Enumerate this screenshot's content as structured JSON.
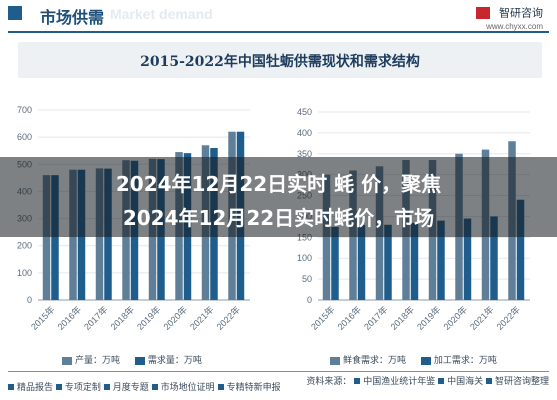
{
  "header": {
    "section_title": "市场供需",
    "watermark_text": "Market demand",
    "brand_name": "智研咨询",
    "brand_url": "www.chyxx.com"
  },
  "chart_data": [
    {
      "type": "bar",
      "title": "2015-2022年中国牡蛎供需现状和需求结构",
      "categories": [
        "2015年",
        "2016年",
        "2017年",
        "2018年",
        "2019年",
        "2020年",
        "2021年",
        "2022年"
      ],
      "ylim": [
        0,
        700
      ],
      "yticks": [
        0,
        100,
        200,
        300,
        400,
        500,
        600,
        700
      ],
      "series": [
        {
          "name": "产量：万吨",
          "color": "#5f7f99",
          "values": [
            460,
            480,
            485,
            515,
            520,
            545,
            570,
            620
          ]
        },
        {
          "name": "需求量：万吨",
          "color": "#1f5d8c",
          "values": [
            460,
            480,
            484,
            513,
            519,
            541,
            560,
            620
          ]
        }
      ]
    },
    {
      "type": "bar",
      "categories": [
        "2015年",
        "2016年",
        "2017年",
        "2018年",
        "2019年",
        "2020年",
        "2021年",
        "2022年"
      ],
      "ylim": [
        0,
        450
      ],
      "yticks": [
        0,
        50,
        100,
        150,
        200,
        250,
        300,
        350,
        400,
        450
      ],
      "series": [
        {
          "name": "鲜食需求：万吨",
          "color": "#5f7f99",
          "values": [
            300,
            310,
            320,
            335,
            335,
            350,
            360,
            380
          ]
        },
        {
          "name": "加工需求：万吨",
          "color": "#1f5d8c",
          "values": [
            175,
            180,
            180,
            185,
            190,
            195,
            200,
            240
          ]
        }
      ]
    }
  ],
  "overlay": {
    "line1": "2024年12月22日实时 蚝 价，聚焦",
    "line2": "2024年12月22日实时蚝价，市场"
  },
  "footer": {
    "links": [
      "精品报告",
      "专项定制",
      "月度专题",
      "市场地位证明",
      "专精特新申报"
    ],
    "source_label": "资料来源：",
    "sources": [
      "中国渔业统计年鉴",
      "中国海关",
      "智研咨询整理"
    ]
  }
}
